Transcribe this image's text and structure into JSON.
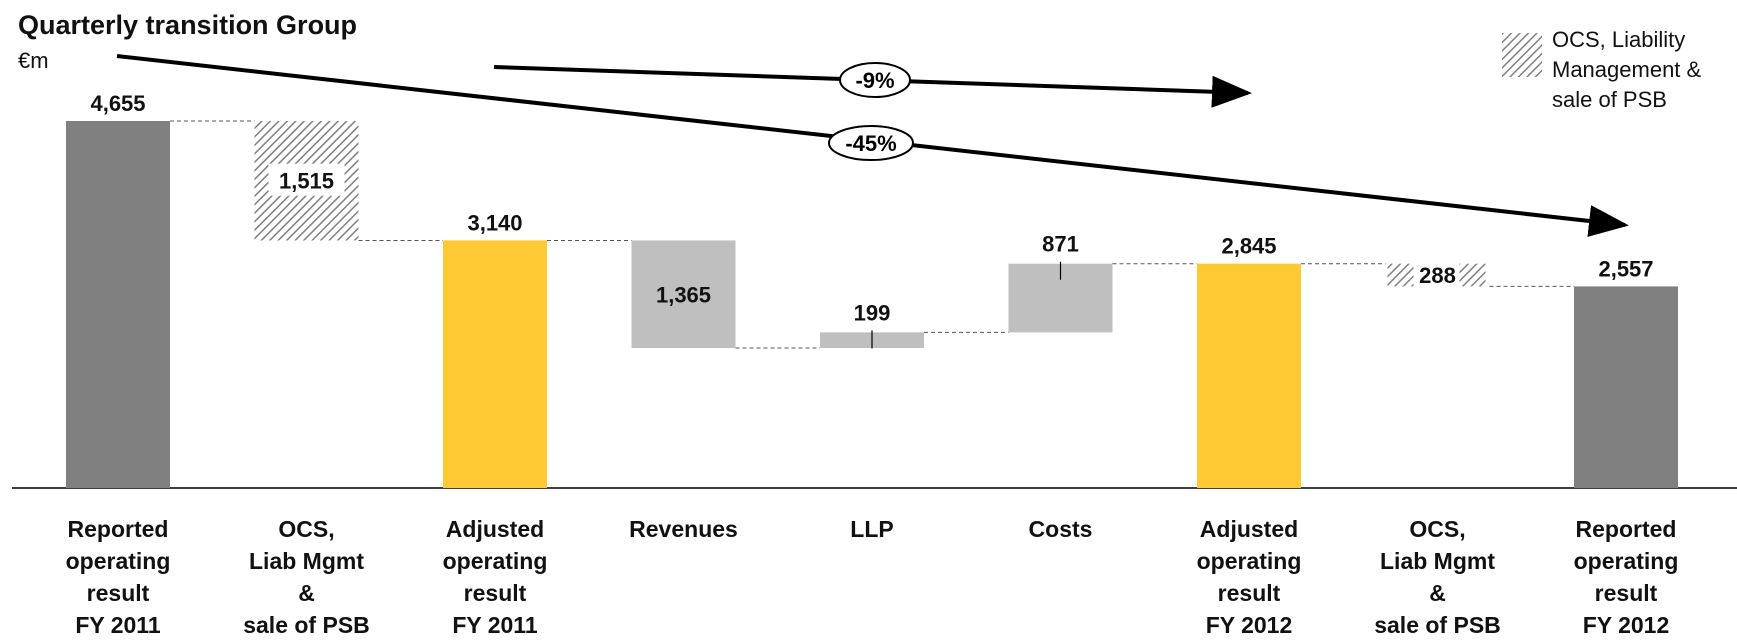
{
  "header": {
    "title": "Quarterly transition Group",
    "unit": "€m"
  },
  "legend": {
    "label": "OCS, Liability Management & sale of PSB"
  },
  "colors": {
    "reported": "#808080",
    "adjusted": "#FFC933",
    "delta": "#BFBFBF",
    "hatch": "#7f7f7f"
  },
  "chart_data": {
    "type": "bar",
    "subtype": "waterfall",
    "title": "Quarterly transition Group",
    "ylabel": "€m",
    "categories": [
      "Reported\noperating\nresult\nFY 2011",
      "OCS,\nLiab Mgmt\n&\nsale of PSB",
      "Adjusted\noperating\nresult\nFY 2011",
      "Revenues",
      "LLP",
      "Costs",
      "Adjusted\noperating\nresult\nFY 2012",
      "OCS,\nLiab Mgmt\n&\nsale of PSB",
      "Reported\noperating\nresult\nFY 2012"
    ],
    "bars": [
      {
        "kind": "total",
        "start": 0,
        "end": 4655,
        "label": "4,655",
        "style": "reported"
      },
      {
        "kind": "delta",
        "start": 4655,
        "end": 3140,
        "label": "1,515",
        "style": "hatch"
      },
      {
        "kind": "total",
        "start": 0,
        "end": 3140,
        "label": "3,140",
        "style": "adjusted"
      },
      {
        "kind": "delta",
        "start": 3140,
        "end": 1775,
        "label": "1,365",
        "style": "delta"
      },
      {
        "kind": "delta",
        "start": 1775,
        "end": 1974,
        "label": "199",
        "style": "delta"
      },
      {
        "kind": "delta",
        "start": 1974,
        "end": 2845,
        "label": "871",
        "style": "delta"
      },
      {
        "kind": "total",
        "start": 0,
        "end": 2845,
        "label": "2,845",
        "style": "adjusted"
      },
      {
        "kind": "delta",
        "start": 2845,
        "end": 2557,
        "label": "288",
        "style": "hatch"
      },
      {
        "kind": "total",
        "start": 0,
        "end": 2557,
        "label": "2,557",
        "style": "reported"
      }
    ],
    "annotations": [
      {
        "text": "-9%",
        "from_bar": 2,
        "to_bar": 6
      },
      {
        "text": "-45%",
        "from_bar": 0,
        "to_bar": 8
      }
    ],
    "ylim": [
      0,
      4655
    ],
    "legend_position": "top-right",
    "grid": false
  }
}
